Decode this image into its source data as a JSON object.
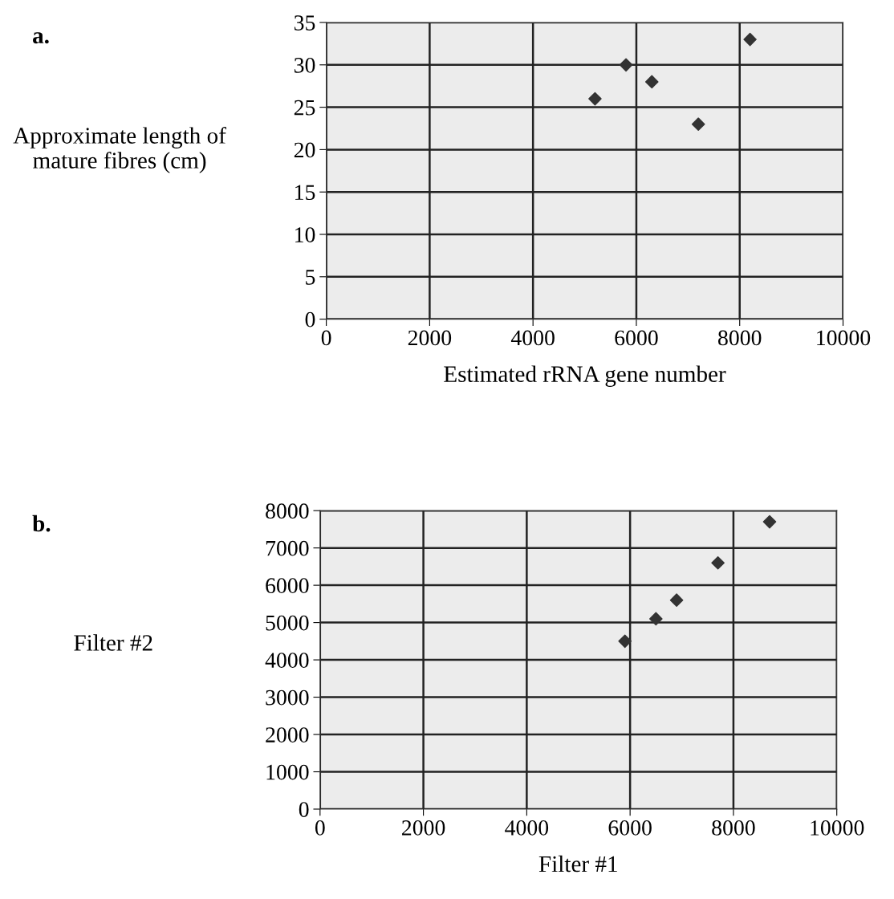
{
  "chart_data": [
    {
      "type": "scatter",
      "xlabel": "Estimated rRNA gene number",
      "ylabel": "Approximate length of\nmature fibres (cm)",
      "annotations": [
        "a."
      ],
      "series": [
        {
          "color": "#333333",
          "x": [
            5200,
            5800,
            6300,
            7200,
            8200
          ],
          "values": [
            26,
            30,
            28,
            23,
            33
          ]
        }
      ],
      "xlim": [
        0,
        10000
      ],
      "xticks": [
        0,
        2000,
        4000,
        6000,
        8000,
        10000
      ],
      "ylim": [
        0,
        35
      ],
      "yticks": [
        0,
        5,
        10,
        15,
        20,
        25,
        30,
        35
      ],
      "grid": true,
      "marker": "diamond"
    },
    {
      "type": "scatter",
      "xlabel": "Filter #1",
      "ylabel": "Filter #2",
      "annotations": [
        "b."
      ],
      "series": [
        {
          "color": "#333333",
          "x": [
            5900,
            6500,
            6900,
            7700,
            8700
          ],
          "values": [
            4500,
            5100,
            5600,
            6600,
            7700
          ]
        }
      ],
      "xlim": [
        0,
        10000
      ],
      "xticks": [
        0,
        2000,
        4000,
        6000,
        8000,
        10000
      ],
      "ylim": [
        0,
        8000
      ],
      "yticks": [
        0,
        1000,
        2000,
        3000,
        4000,
        5000,
        6000,
        7000,
        8000
      ],
      "grid": true,
      "marker": "diamond"
    }
  ]
}
